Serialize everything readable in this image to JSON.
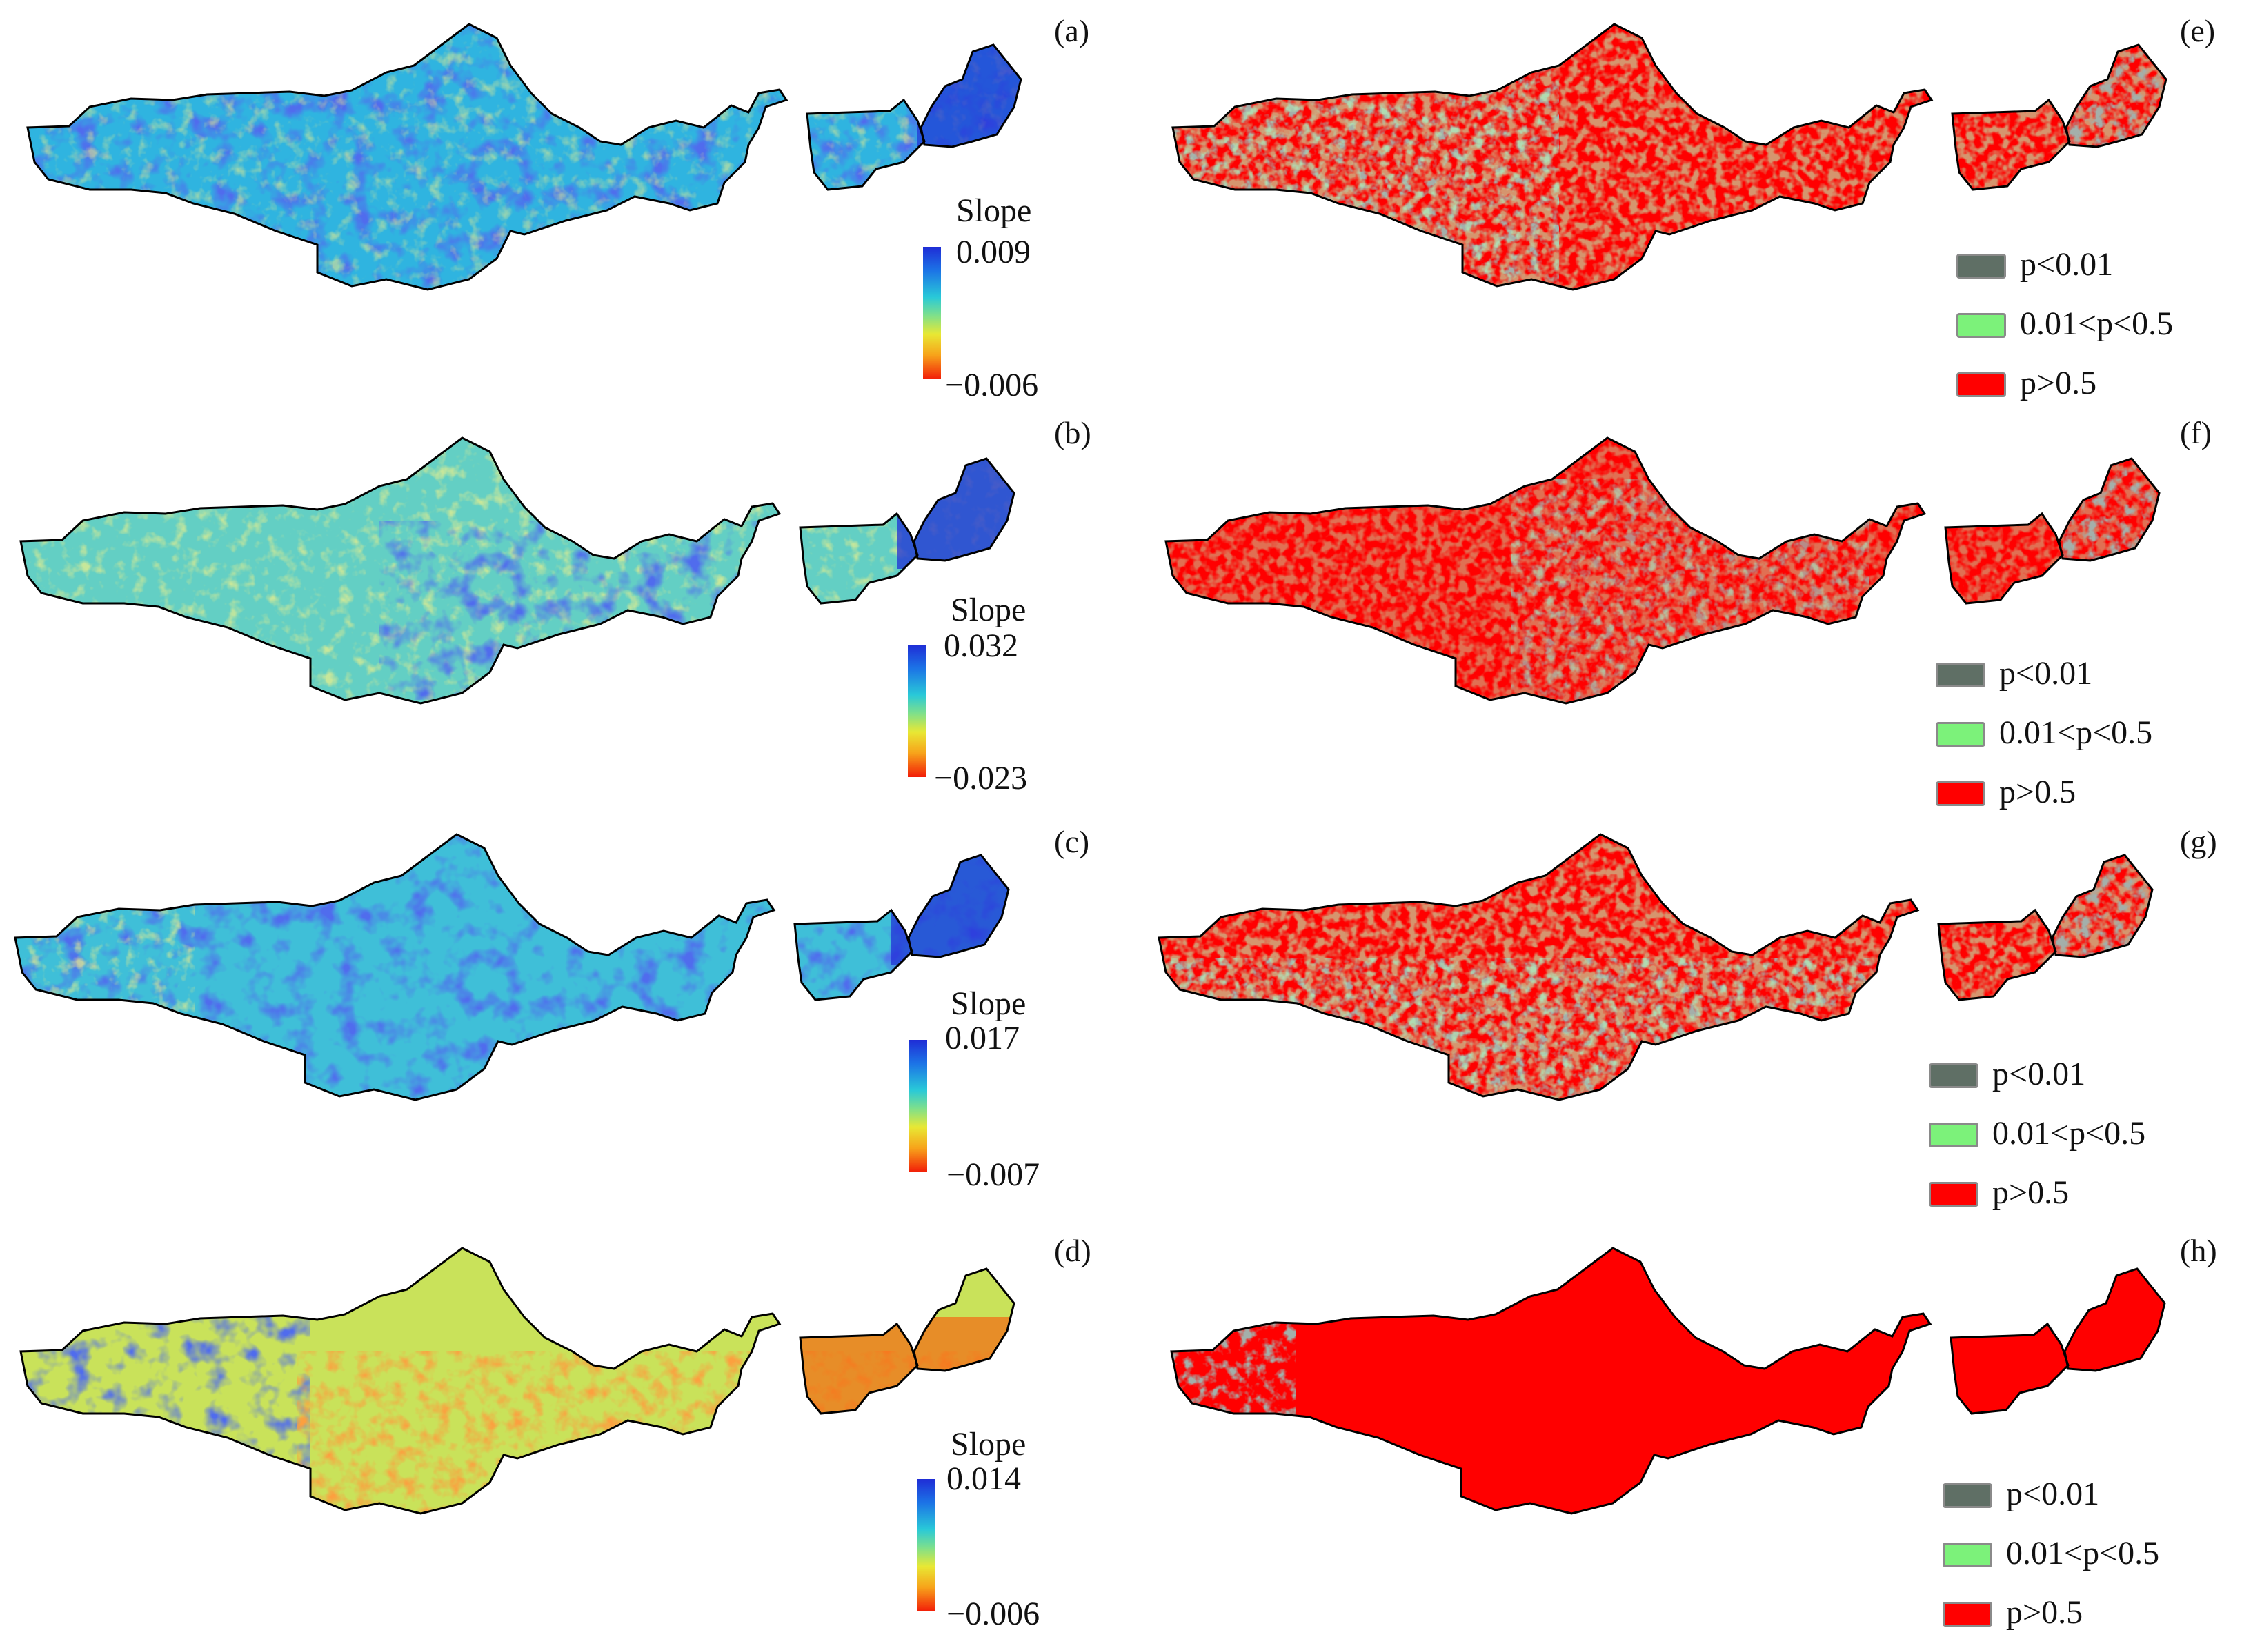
{
  "slope_panels": [
    {
      "label": "(a)",
      "legend_title": "Slope",
      "max": "0.009",
      "min": "−0.006",
      "tone": "blue"
    },
    {
      "label": "(b)",
      "legend_title": "Slope",
      "max": "0.032",
      "min": "−0.023",
      "tone": "mixed"
    },
    {
      "label": "(c)",
      "legend_title": "Slope",
      "max": "0.017",
      "min": "−0.007",
      "tone": "blue"
    },
    {
      "label": "(d)",
      "legend_title": "Slope",
      "max": "0.014",
      "min": "−0.006",
      "tone": "warm"
    }
  ],
  "pvalue_panels": [
    {
      "label": "(e)",
      "dominant": "red"
    },
    {
      "label": "(f)",
      "dominant": "red"
    },
    {
      "label": "(g)",
      "dominant": "red"
    },
    {
      "label": "(h)",
      "dominant": "red"
    }
  ],
  "pvalue_legend": [
    {
      "text": "p<0.01",
      "color": "#5f6f65"
    },
    {
      "text": "0.01<p<0.5",
      "color": "#7cf27a"
    },
    {
      "text": "p>0.5",
      "color": "#ff0000"
    }
  ],
  "colors": {
    "slope_high": "#1f2dd6",
    "slope_mid": "#29c9d8",
    "slope_low": "#f21d08",
    "outline": "#000000"
  }
}
